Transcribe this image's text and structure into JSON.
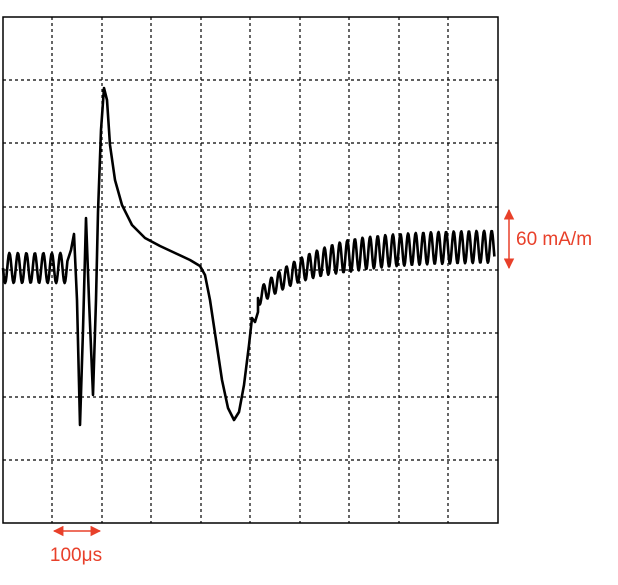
{
  "scale_label": "60 mA/m",
  "time_label": "100μs"
}
